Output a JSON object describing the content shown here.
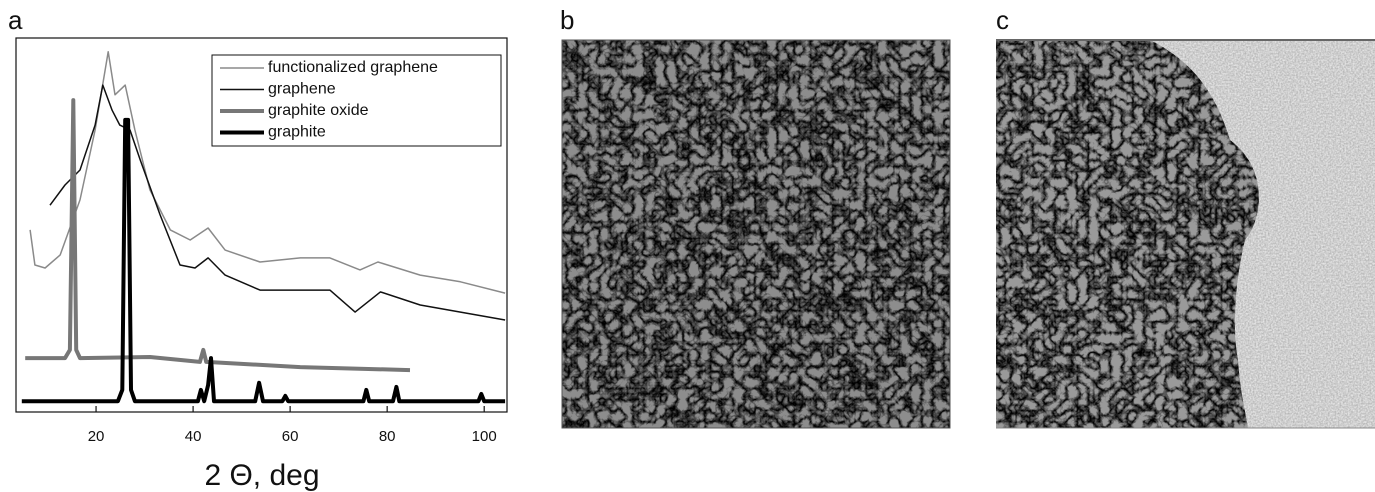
{
  "panel_labels": [
    "a",
    "b",
    "c"
  ],
  "chart_data": {
    "type": "line",
    "x_label": "2 Θ, deg",
    "xlim": [
      3.5,
      104.7
    ],
    "ylim": [
      0,
      100
    ],
    "xticks": [
      20,
      40,
      60,
      80,
      100
    ],
    "legend": "top right",
    "series": [
      {
        "name": "functionalized graphene",
        "color": "#8a8a8a",
        "line_width": 1.5,
        "x": [
          6.4,
          7.4,
          9.5,
          12.6,
          16.7,
          19.8,
          22.5,
          23.9,
          26.0,
          28.0,
          31.1,
          35.3,
          39.4,
          43.1,
          46.6,
          53.8,
          62.1,
          68.2,
          74.4,
          78.1,
          86.8,
          95.1,
          104.3
        ],
        "values": [
          48.7,
          39.3,
          38.5,
          42.0,
          56.7,
          75.4,
          96.3,
          84.8,
          87.4,
          75.4,
          59.4,
          48.7,
          46.0,
          49.2,
          43.3,
          40.1,
          41.2,
          41.2,
          38.0,
          40.1,
          36.6,
          34.8,
          31.8
        ]
      },
      {
        "name": "graphene",
        "color": "#111111",
        "line_width": 1.5,
        "x": [
          10.5,
          13.6,
          16.7,
          19.8,
          21.4,
          23.3,
          24.9,
          27.0,
          29.1,
          33.2,
          37.3,
          40.4,
          43.1,
          46.6,
          53.8,
          62.1,
          68.2,
          73.4,
          78.6,
          86.8,
          104.3
        ],
        "values": [
          55.3,
          60.7,
          64.7,
          76.7,
          87.4,
          80.7,
          76.7,
          75.4,
          67.4,
          52.7,
          39.3,
          38.5,
          41.2,
          36.6,
          32.6,
          32.6,
          32.6,
          26.7,
          32.1,
          28.6,
          24.6
        ]
      },
      {
        "name": "graphite oxide",
        "color": "#777777",
        "line_width": 4,
        "x": [
          5.4,
          13.6,
          14.6,
          15.3,
          15.9,
          16.7,
          31.1,
          41.4,
          42.1,
          42.7,
          62.1,
          84.7
        ],
        "values": [
          14.4,
          14.4,
          16.6,
          83.4,
          16.6,
          14.4,
          14.7,
          13.4,
          16.6,
          13.4,
          12.0,
          11.2
        ]
      },
      {
        "name": "graphite",
        "color": "#000000",
        "line_width": 4,
        "x": [
          4.7,
          24.5,
          25.4,
          26.0,
          26.6,
          27.2,
          28.0,
          41.0,
          41.6,
          42.3,
          43.1,
          43.7,
          44.3,
          52.8,
          53.6,
          54.4,
          58.4,
          59.0,
          59.6,
          75.1,
          75.7,
          76.3,
          81.2,
          81.9,
          82.5,
          98.8,
          99.4,
          100.0,
          104.3
        ],
        "values": [
          2.9,
          2.9,
          5.9,
          78.1,
          78.1,
          5.9,
          2.9,
          2.9,
          5.9,
          2.9,
          7.2,
          14.4,
          2.9,
          2.9,
          7.8,
          2.9,
          2.9,
          4.3,
          2.9,
          2.9,
          5.9,
          2.9,
          2.9,
          6.7,
          2.9,
          2.9,
          4.8,
          2.9,
          2.9
        ]
      }
    ]
  }
}
